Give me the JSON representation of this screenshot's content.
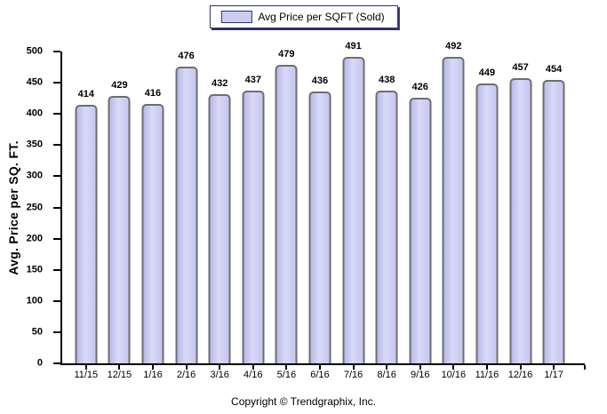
{
  "legend": {
    "label": "Avg Price per SQFT (Sold)",
    "position": "top-center"
  },
  "chart_data": {
    "type": "bar",
    "title": "",
    "categories": [
      "11/15",
      "12/15",
      "1/16",
      "2/16",
      "3/16",
      "4/16",
      "5/16",
      "6/16",
      "7/16",
      "8/16",
      "9/16",
      "10/16",
      "11/16",
      "12/16",
      "1/17"
    ],
    "series": [
      {
        "name": "Avg Price per SQFT (Sold)",
        "values": [
          414,
          429,
          416,
          476,
          432,
          437,
          479,
          436,
          491,
          438,
          426,
          492,
          449,
          457,
          454
        ]
      }
    ],
    "values": [
      414,
      429,
      416,
      476,
      432,
      437,
      479,
      436,
      491,
      438,
      426,
      492,
      449,
      457,
      454
    ],
    "value_labels_shown": true,
    "xlabel": "",
    "ylabel": "Avg. Price per SQ. FT.",
    "ylim": [
      0,
      500
    ],
    "y_ticks": [
      0,
      50,
      100,
      150,
      200,
      250,
      300,
      350,
      400,
      450,
      500
    ],
    "grid": false,
    "legend_position": "top-center",
    "colors": {
      "bar_fill": "#ccccf2",
      "bar_border": "#6e6e6e",
      "legend_border": "#30306e",
      "axis": "#000000",
      "text": "#000000",
      "background": "#ffffff"
    }
  },
  "footer": {
    "copyright": "Copyright © Trendgraphix, Inc."
  }
}
